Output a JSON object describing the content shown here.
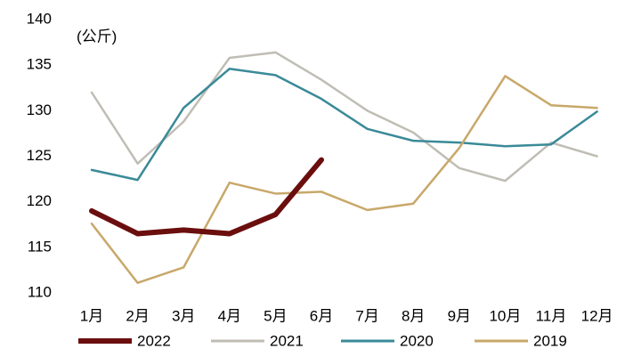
{
  "chart_data": {
    "type": "line",
    "unit_label": "(公斤)",
    "categories": [
      "1月",
      "2月",
      "3月",
      "4月",
      "5月",
      "6月",
      "7月",
      "8月",
      "9月",
      "10月",
      "11月",
      "12月"
    ],
    "ylim": [
      110,
      140
    ],
    "yticks": [
      110,
      115,
      120,
      125,
      130,
      135,
      140
    ],
    "grid": false,
    "legend": "bottom",
    "series": [
      {
        "name": "2022",
        "color": "#6b0e0e",
        "values": [
          119.0,
          116.5,
          116.9,
          116.5,
          118.6,
          124.6,
          null,
          null,
          null,
          null,
          null,
          null
        ]
      },
      {
        "name": "2021",
        "color": "#c0bdb5",
        "values": [
          132.0,
          124.2,
          128.8,
          135.8,
          136.4,
          133.4,
          130.0,
          127.6,
          123.7,
          122.3,
          126.5,
          125.0
        ]
      },
      {
        "name": "2020",
        "color": "#3a8a98",
        "values": [
          123.5,
          122.4,
          130.3,
          134.6,
          133.9,
          131.3,
          128.0,
          126.7,
          126.5,
          126.1,
          126.3,
          129.9
        ]
      },
      {
        "name": "2019",
        "color": "#c8a86a",
        "values": [
          117.6,
          111.1,
          112.8,
          122.1,
          120.9,
          121.1,
          119.1,
          119.8,
          125.9,
          133.8,
          130.6,
          130.3
        ]
      }
    ]
  }
}
